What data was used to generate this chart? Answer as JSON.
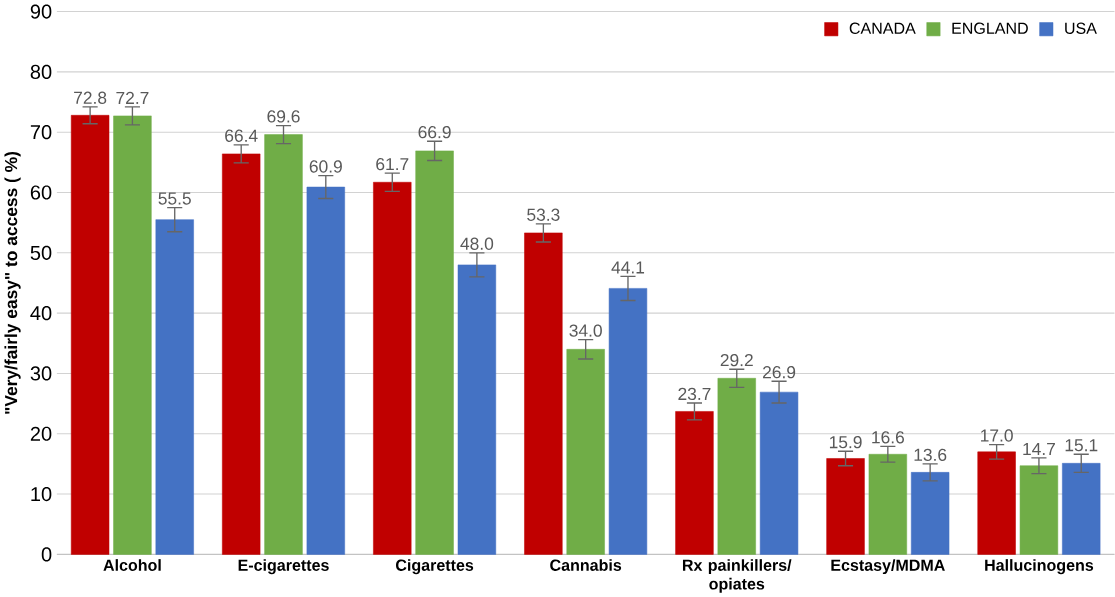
{
  "chart_data": {
    "type": "bar",
    "ylabel": "\"Very/fairly easy\" to access ( %)",
    "categories": [
      "Alcohol",
      "E-cigarettes",
      "Cigarettes",
      "Cannabis",
      "Rx painkillers/ opiates",
      "Ecstasy/MDMA",
      "Hallucinogens"
    ],
    "series": [
      {
        "name": "CANADA",
        "color": "#c00000",
        "values": [
          72.8,
          66.4,
          61.7,
          53.3,
          23.7,
          15.9,
          17.0
        ],
        "errors": [
          1.4,
          1.5,
          1.5,
          1.5,
          1.4,
          1.2,
          1.2
        ],
        "value_labels": [
          "72.8",
          "66.4",
          "61.7",
          "53.3",
          "23.7",
          "15.9",
          "17.0"
        ]
      },
      {
        "name": "ENGLAND",
        "color": "#70ad47",
        "values": [
          72.7,
          69.6,
          66.9,
          34.0,
          29.2,
          16.6,
          14.7
        ],
        "errors": [
          1.5,
          1.5,
          1.6,
          1.6,
          1.5,
          1.3,
          1.3
        ],
        "value_labels": [
          "72.7",
          "69.6",
          "66.9",
          "34.0",
          "29.2",
          "16.6",
          "14.7"
        ]
      },
      {
        "name": "USA",
        "color": "#4472c4",
        "values": [
          55.5,
          60.9,
          48.0,
          44.1,
          26.9,
          13.6,
          15.1
        ],
        "errors": [
          2.0,
          1.9,
          2.0,
          2.0,
          1.8,
          1.4,
          1.5
        ],
        "value_labels": [
          "55.5",
          "60.9",
          "48.0",
          "44.1",
          "26.9",
          "13.6",
          "15.1"
        ]
      }
    ],
    "ylim": [
      0,
      90
    ],
    "yticks": [
      0,
      10,
      20,
      30,
      40,
      50,
      60,
      70,
      80,
      90
    ],
    "grid": "y",
    "legend": "top right"
  }
}
